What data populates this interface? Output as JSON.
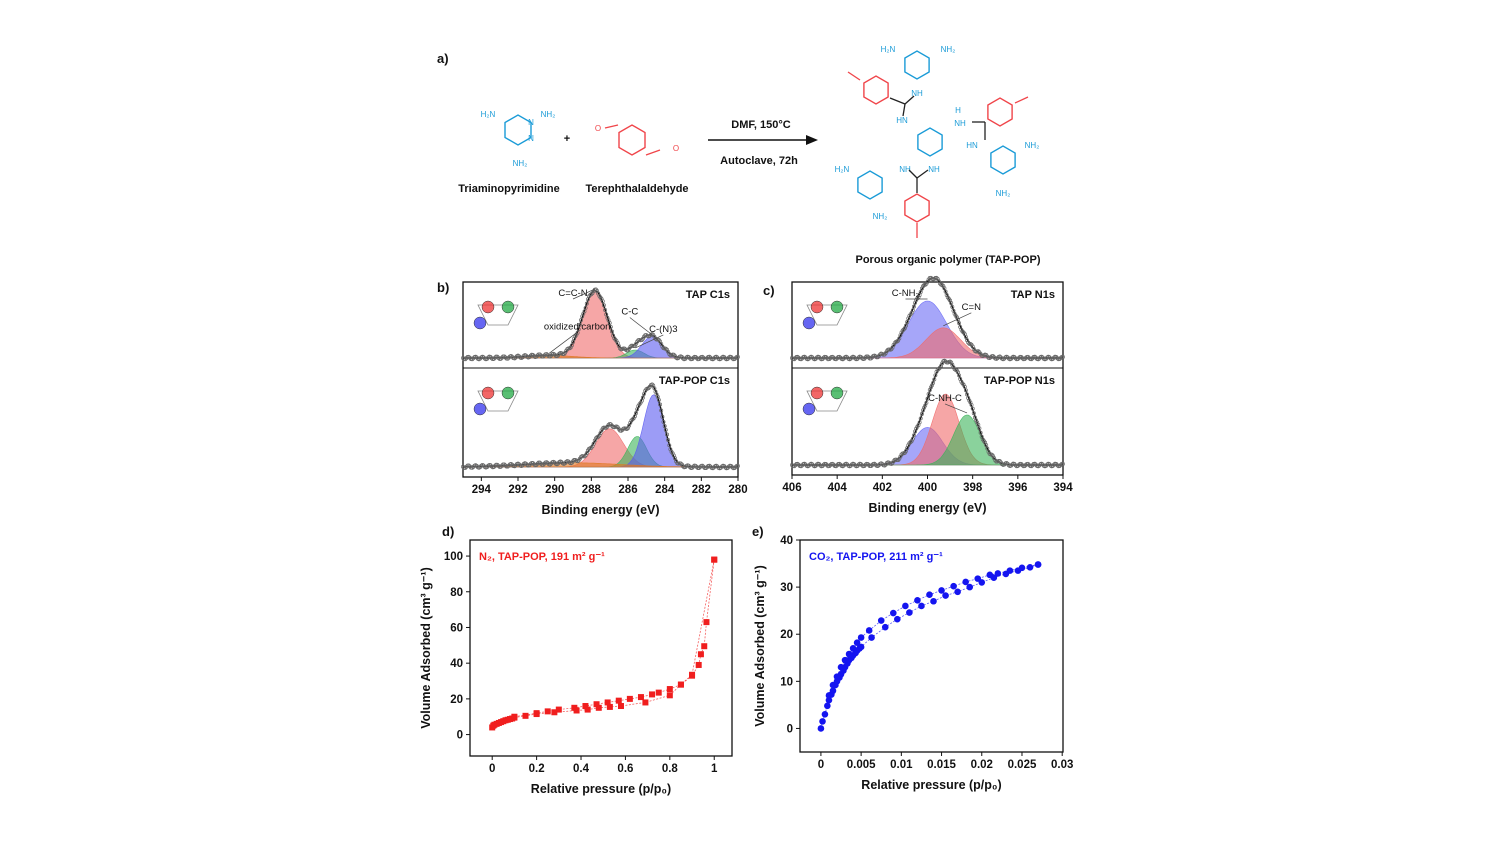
{
  "panels": {
    "a": "a)",
    "b": "b)",
    "c": "c)",
    "d": "d)",
    "e": "e)"
  },
  "scheme": {
    "reactant1": "Triaminopyrimidine",
    "reactant2": "Terephthalaldehyde",
    "plus": "+",
    "condition1": "DMF, 150°C",
    "condition2": "Autoclave, 72h",
    "product": "Porous organic polymer (TAP-POP)",
    "atoms": {
      "h2n": "H₂N",
      "nh2": "NH₂",
      "n": "N",
      "o": "O",
      "nh": "NH",
      "hn": "HN",
      "h": "H"
    },
    "colors": {
      "tap": "#1a9bd7",
      "aldehyde": "#f0454a",
      "linker": "#222222"
    }
  },
  "chart_data": [
    {
      "id": "b",
      "type": "area",
      "xlabel": "Binding energy (eV)",
      "xlim": [
        295,
        280
      ],
      "xticks": [
        294,
        292,
        290,
        288,
        286,
        284,
        282,
        280
      ],
      "yaxis_visible": false,
      "spectra": [
        {
          "label": "TAP C1s",
          "components": [
            {
              "name": "C=C-N",
              "center": 287.8,
              "height": 1.0,
              "fwhm": 1.6,
              "color": "#f06a6a"
            },
            {
              "name": "C-(N)3",
              "center": 285.6,
              "height": 0.12,
              "fwhm": 1.1,
              "color": "#3cb45a"
            },
            {
              "name": "C-C",
              "center": 284.7,
              "height": 0.32,
              "fwhm": 1.3,
              "color": "#5a5af0"
            },
            {
              "name": "oxidized carbon",
              "center": 290.3,
              "height": 0.04,
              "fwhm": 3.0,
              "color": "#e07820"
            }
          ],
          "annotations": [
            "C=C-N",
            "C-(N)3",
            "C-C",
            "oxidized carbon"
          ]
        },
        {
          "label": "TAP-POP C1s",
          "components": [
            {
              "center": 287.0,
              "height": 0.45,
              "fwhm": 1.8,
              "color": "#f06a6a"
            },
            {
              "center": 285.5,
              "height": 0.36,
              "fwhm": 1.2,
              "color": "#3cb45a"
            },
            {
              "center": 284.6,
              "height": 0.85,
              "fwhm": 1.3,
              "color": "#5a5af0"
            },
            {
              "center": 289.0,
              "height": 0.05,
              "fwhm": 6.0,
              "color": "#e07820"
            }
          ],
          "annotations": []
        }
      ]
    },
    {
      "id": "c",
      "type": "area",
      "xlabel": "Binding energy (eV)",
      "xlim": [
        406,
        394
      ],
      "xticks": [
        406,
        404,
        402,
        400,
        398,
        396,
        394
      ],
      "yaxis_visible": false,
      "spectra": [
        {
          "label": "TAP N1s",
          "components": [
            {
              "name": "C-NH2",
              "center": 400.0,
              "height": 0.85,
              "fwhm": 2.0,
              "color": "#6a6af5"
            },
            {
              "name": "C=N",
              "center": 399.3,
              "height": 0.45,
              "fwhm": 1.8,
              "color": "#f06a6a"
            }
          ],
          "annotations": [
            "C-NH₂",
            "C=N"
          ]
        },
        {
          "label": "TAP-POP N1s",
          "components": [
            {
              "center": 400.0,
              "height": 0.45,
              "fwhm": 1.6,
              "color": "#6a6af5"
            },
            {
              "center": 399.2,
              "height": 0.85,
              "fwhm": 1.4,
              "color": "#f06a6a"
            },
            {
              "name": "C-NH-C",
              "center": 398.25,
              "height": 0.6,
              "fwhm": 1.4,
              "color": "#3cb45a"
            }
          ],
          "annotations": [
            "C-NH-C"
          ]
        }
      ]
    },
    {
      "id": "d",
      "type": "scatter",
      "legend": "N₂, TAP-POP, 191 m² g⁻¹",
      "xlabel": "Relative pressure (p/p₀)",
      "ylabel": "Volume Adsorbed (cm³ g⁻¹)",
      "xlim": [
        -0.1,
        1.08
      ],
      "ylim": [
        -12,
        109
      ],
      "xticks": [
        0,
        0.2,
        0.4,
        0.6,
        0.8,
        1
      ],
      "yticks": [
        0,
        20,
        40,
        60,
        80,
        100
      ],
      "color": "#f01e1e",
      "series": [
        {
          "x": [
            0,
            0.005,
            0.01,
            0.02,
            0.03,
            0.04,
            0.05,
            0.06,
            0.07,
            0.08,
            0.09,
            0.1,
            0.15,
            0.2,
            0.28,
            0.38,
            0.43,
            0.48,
            0.53,
            0.58,
            0.69,
            0.8,
            0.85,
            0.9,
            0.93,
            0.94,
            0.955,
            0.965,
            1.0
          ],
          "y": [
            4,
            5,
            5.5,
            6,
            6.5,
            7,
            7.5,
            8,
            8.3,
            8.7,
            9,
            9.5,
            10.5,
            11.5,
            12.5,
            13.5,
            14,
            15,
            15.5,
            16,
            18,
            22,
            28,
            33,
            39,
            45,
            49.5,
            63,
            98
          ]
        },
        {
          "x": [
            0.1,
            0.2,
            0.25,
            0.3,
            0.37,
            0.42,
            0.47,
            0.52,
            0.57,
            0.62,
            0.67,
            0.72,
            0.75,
            0.8,
            0.85,
            0.9,
            1.0
          ],
          "y": [
            10,
            12,
            13,
            14,
            15,
            16,
            17,
            18,
            19,
            20,
            21,
            22.5,
            23.5,
            25.5,
            28,
            33.5,
            98
          ]
        }
      ]
    },
    {
      "id": "e",
      "type": "scatter",
      "legend": "CO₂, TAP-POP, 211 m² g⁻¹",
      "xlabel": "Relative pressure (p/p₀)",
      "ylabel": "Volume Adsorbed (cm³ g⁻¹)",
      "xlim": [
        -0.0026,
        0.0301
      ],
      "ylim": [
        -5,
        40
      ],
      "xticks": [
        0,
        0.005,
        0.01,
        0.015,
        0.02,
        0.025,
        0.03
      ],
      "yticks": [
        0,
        10,
        20,
        30,
        40
      ],
      "color": "#1414f0",
      "series": [
        {
          "x": [
            0,
            0.0002,
            0.0005,
            0.0008,
            0.001,
            0.0013,
            0.0015,
            0.0018,
            0.002,
            0.0023,
            0.0025,
            0.0028,
            0.003,
            0.0033,
            0.0035,
            0.0038,
            0.004,
            0.0043,
            0.0045,
            0.0048,
            0.005,
            0.0063,
            0.008,
            0.0095,
            0.011,
            0.0125,
            0.014,
            0.0155,
            0.017,
            0.0185,
            0.02,
            0.0215,
            0.023,
            0.0245,
            0.026,
            0.027
          ],
          "y": [
            0,
            1.5,
            3,
            4.8,
            6,
            7.2,
            8,
            9.2,
            10,
            10.8,
            11.5,
            12.3,
            13,
            13.8,
            14.5,
            15,
            15.5,
            16,
            16.5,
            17,
            17.3,
            19.3,
            21.5,
            23.2,
            24.6,
            26,
            27,
            28.2,
            29,
            30,
            31,
            32,
            32.8,
            33.5,
            34.2,
            34.8
          ]
        },
        {
          "x": [
            0.001,
            0.0015,
            0.002,
            0.0025,
            0.003,
            0.0035,
            0.004,
            0.0045,
            0.005,
            0.006,
            0.0075,
            0.009,
            0.0105,
            0.012,
            0.0135,
            0.015,
            0.0165,
            0.018,
            0.0195,
            0.021,
            0.022,
            0.0235,
            0.025,
            0.027
          ],
          "y": [
            7,
            9.2,
            11,
            13,
            14.5,
            15.8,
            17,
            18.2,
            19.3,
            20.8,
            22.9,
            24.5,
            26,
            27.2,
            28.4,
            29.3,
            30.2,
            31.1,
            31.8,
            32.6,
            32.9,
            33.5,
            34.1,
            34.8
          ]
        }
      ]
    }
  ]
}
